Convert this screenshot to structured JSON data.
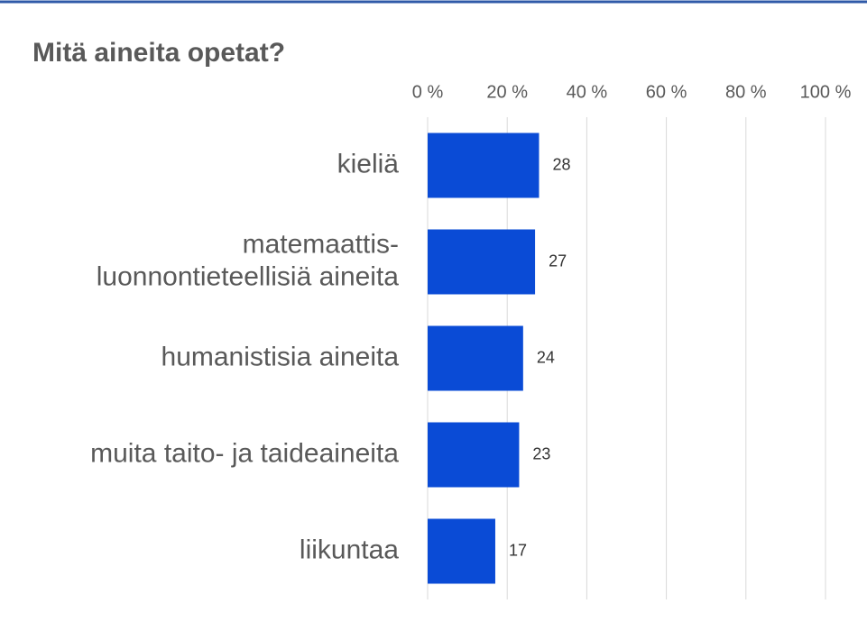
{
  "chart_data": {
    "type": "bar",
    "orientation": "horizontal",
    "title": "Mitä aineita opetat?",
    "categories": [
      "kieliä",
      "matemaattis-\nluonnontieteellisiä aineita",
      "humanistisia aineita",
      "muita taito- ja taideaineita",
      "liikuntaa"
    ],
    "values": [
      28,
      27,
      24,
      23,
      17
    ],
    "color": "#0a4bd6",
    "xlim": [
      0,
      100
    ],
    "xticks": [
      {
        "value": 0,
        "label": "0 %"
      },
      {
        "value": 20,
        "label": "20 %"
      },
      {
        "value": 40,
        "label": "40 %"
      },
      {
        "value": 60,
        "label": "60 %"
      },
      {
        "value": 80,
        "label": "80 %"
      },
      {
        "value": 100,
        "label": "100 %"
      }
    ],
    "grid": true
  }
}
